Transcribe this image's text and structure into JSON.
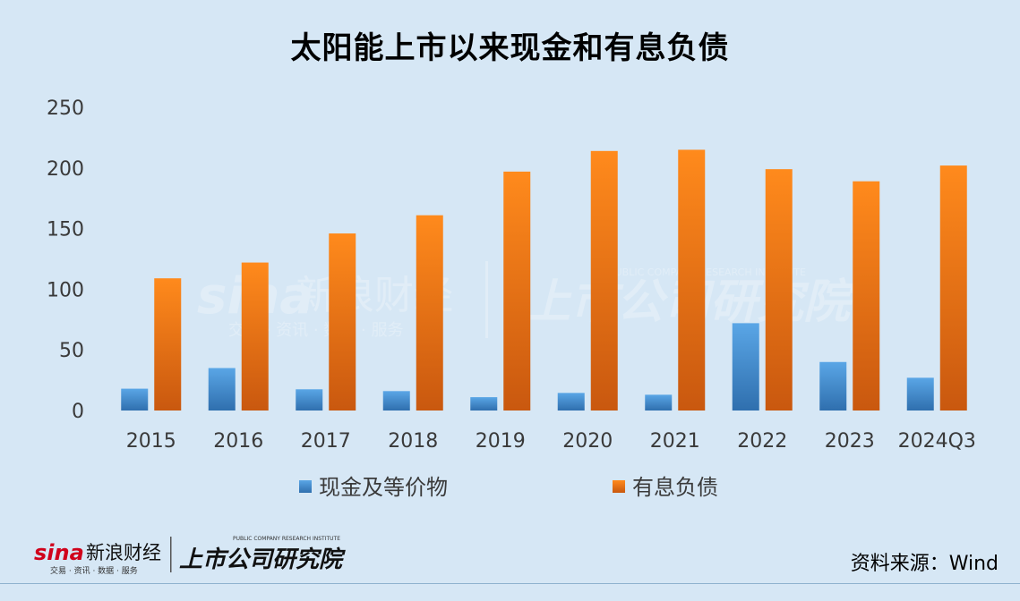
{
  "title": "太阳能上市以来现金和有息负债",
  "source_note": "资料来源：Wind",
  "brand": {
    "sina_logo_text": "sina",
    "sina_name": "新浪财经",
    "sina_tagline": "交易 · 资讯 · 数据 · 服务",
    "institute_name": "上市公司研究院",
    "institute_en": "PUBLIC COMPANY RESEARCH INSTITUTE"
  },
  "colors": {
    "background": "#d6e7f5",
    "cash_top": "#5aa6e6",
    "cash_bottom": "#2f6fae",
    "debt_top": "#ff8a1c",
    "debt_bottom": "#c9580f"
  },
  "chart_data": {
    "type": "bar",
    "title": "太阳能上市以来现金和有息负债",
    "categories": [
      "2015",
      "2016",
      "2017",
      "2018",
      "2019",
      "2020",
      "2021",
      "2022",
      "2023",
      "2024Q3"
    ],
    "series": [
      {
        "name": "现金及等价物",
        "values": [
          18,
          35,
          17.5,
          16,
          11,
          14.5,
          13,
          72,
          40,
          27
        ]
      },
      {
        "name": "有息负债",
        "values": [
          109,
          122,
          146,
          161,
          197,
          214,
          215,
          199,
          189,
          202
        ]
      }
    ],
    "yticks": [
      "0",
      "50",
      "100",
      "150",
      "200",
      "250"
    ],
    "ylim": [
      0,
      250
    ],
    "grid": false,
    "legend_position": "bottom"
  }
}
